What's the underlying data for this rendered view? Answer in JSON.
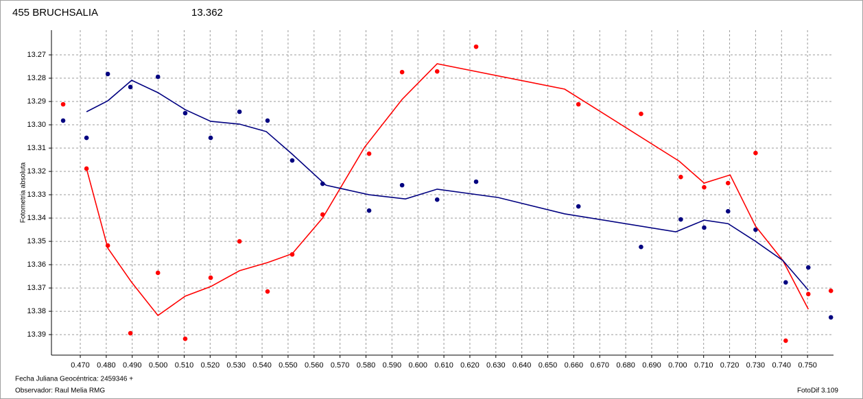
{
  "chart_data": {
    "type": "scatter",
    "title": "455 BRUCHSALIA",
    "subtitle": "13.362",
    "title_color": "#ff0000",
    "subtitle_color": "#000080",
    "ylabel": "Fotometria absoluta",
    "xlabel": "Fecha Juliana Geocéntrica: 2459346 +",
    "observer": "Observador: Raul Melia RMG",
    "software": "FotoDif 3.109",
    "grid": true,
    "xlim": [
      0.4589,
      0.76
    ],
    "ylim": [
      13.3988,
      13.2594
    ],
    "xticks": [
      {
        "value": 0.47,
        "label": "0.470"
      },
      {
        "value": 0.48,
        "label": "0.480"
      },
      {
        "value": 0.49,
        "label": "0.490"
      },
      {
        "value": 0.5,
        "label": "0.500"
      },
      {
        "value": 0.51,
        "label": "0.510"
      },
      {
        "value": 0.52,
        "label": "0.520"
      },
      {
        "value": 0.53,
        "label": "0.530"
      },
      {
        "value": 0.54,
        "label": "0.540"
      },
      {
        "value": 0.55,
        "label": "0.550"
      },
      {
        "value": 0.56,
        "label": "0.560"
      },
      {
        "value": 0.57,
        "label": "0.570"
      },
      {
        "value": 0.58,
        "label": "0.580"
      },
      {
        "value": 0.59,
        "label": "0.590"
      },
      {
        "value": 0.6,
        "label": "0.600"
      },
      {
        "value": 0.61,
        "label": "0.610"
      },
      {
        "value": 0.62,
        "label": "0.620"
      },
      {
        "value": 0.63,
        "label": "0.630"
      },
      {
        "value": 0.64,
        "label": "0.640"
      },
      {
        "value": 0.65,
        "label": "0.650"
      },
      {
        "value": 0.66,
        "label": "0.660"
      },
      {
        "value": 0.67,
        "label": "0.670"
      },
      {
        "value": 0.68,
        "label": "0.680"
      },
      {
        "value": 0.69,
        "label": "0.690"
      },
      {
        "value": 0.7,
        "label": "0.700"
      },
      {
        "value": 0.71,
        "label": "0.710"
      },
      {
        "value": 0.72,
        "label": "0.720"
      },
      {
        "value": 0.73,
        "label": "0.730"
      },
      {
        "value": 0.74,
        "label": "0.740"
      },
      {
        "value": 0.75,
        "label": "0.750"
      }
    ],
    "yticks": [
      13.27,
      13.28,
      13.29,
      {
        "value": 13.3,
        "label": "13.30"
      },
      13.31,
      13.32,
      13.33,
      13.34,
      13.35,
      13.36,
      13.37,
      13.38,
      13.39
    ],
    "series": [
      {
        "mode": "markers",
        "color": "#ff0000",
        "x": [
          0.4634,
          0.4724,
          0.4806,
          0.4893,
          0.4999,
          0.5104,
          0.5202,
          0.5313,
          0.5421,
          0.5516,
          0.5633,
          0.5812,
          0.5939,
          0.6074,
          0.6224,
          0.6618,
          0.6859,
          0.7012,
          0.7102,
          0.7194,
          0.73,
          0.7416,
          0.7503,
          0.759
        ],
        "values": [
          13.2912,
          13.3188,
          13.3518,
          13.3894,
          13.3635,
          13.3918,
          13.3656,
          13.35,
          13.3715,
          13.3556,
          13.3385,
          13.3124,
          13.2774,
          13.2771,
          13.2665,
          13.2912,
          13.2953,
          13.3224,
          13.3268,
          13.325,
          13.3121,
          13.3926,
          13.3726,
          13.3712
        ]
      },
      {
        "mode": "markers",
        "color": "#000080",
        "x": [
          0.4634,
          0.4724,
          0.4806,
          0.4893,
          0.4999,
          0.5104,
          0.5202,
          0.5313,
          0.5421,
          0.5516,
          0.5633,
          0.5812,
          0.5939,
          0.6074,
          0.6224,
          0.6618,
          0.6859,
          0.7012,
          0.7102,
          0.7194,
          0.73,
          0.7416,
          0.7503,
          0.759
        ],
        "values": [
          13.2982,
          13.3056,
          13.2782,
          13.2838,
          13.2794,
          13.295,
          13.3056,
          13.2944,
          13.2982,
          13.3153,
          13.3253,
          13.3368,
          13.3259,
          13.3321,
          13.3244,
          13.335,
          13.3524,
          13.3406,
          13.3441,
          13.3371,
          13.345,
          13.3676,
          13.3612,
          13.3826
        ]
      },
      {
        "mode": "line",
        "color": "#ff0000",
        "x": [
          0.4724,
          0.4806,
          0.4898,
          0.4999,
          0.5104,
          0.5202,
          0.5313,
          0.5421,
          0.5516,
          0.5633,
          0.5794,
          0.5939,
          0.6074,
          0.6565,
          0.7006,
          0.7102,
          0.7202,
          0.73,
          0.7405,
          0.7503
        ],
        "values": [
          13.3188,
          13.3529,
          13.3676,
          13.3818,
          13.3735,
          13.3694,
          13.3626,
          13.3591,
          13.3553,
          13.34,
          13.3097,
          13.2891,
          13.2738,
          13.2847,
          13.3156,
          13.325,
          13.3215,
          13.3435,
          13.3582,
          13.3791
        ]
      },
      {
        "mode": "line",
        "color": "#000080",
        "x": [
          0.4724,
          0.4806,
          0.4898,
          0.4999,
          0.5104,
          0.5202,
          0.5313,
          0.5416,
          0.5516,
          0.5646,
          0.5812,
          0.5952,
          0.6074,
          0.6309,
          0.6565,
          0.6993,
          0.7102,
          0.7194,
          0.73,
          0.7405,
          0.7503
        ],
        "values": [
          13.2944,
          13.2897,
          13.2809,
          13.2862,
          13.2935,
          13.2985,
          13.2997,
          13.3029,
          13.3126,
          13.3259,
          13.33,
          13.3318,
          13.3276,
          13.3312,
          13.3382,
          13.3459,
          13.3409,
          13.3424,
          13.35,
          13.3582,
          13.3709
        ]
      }
    ]
  }
}
